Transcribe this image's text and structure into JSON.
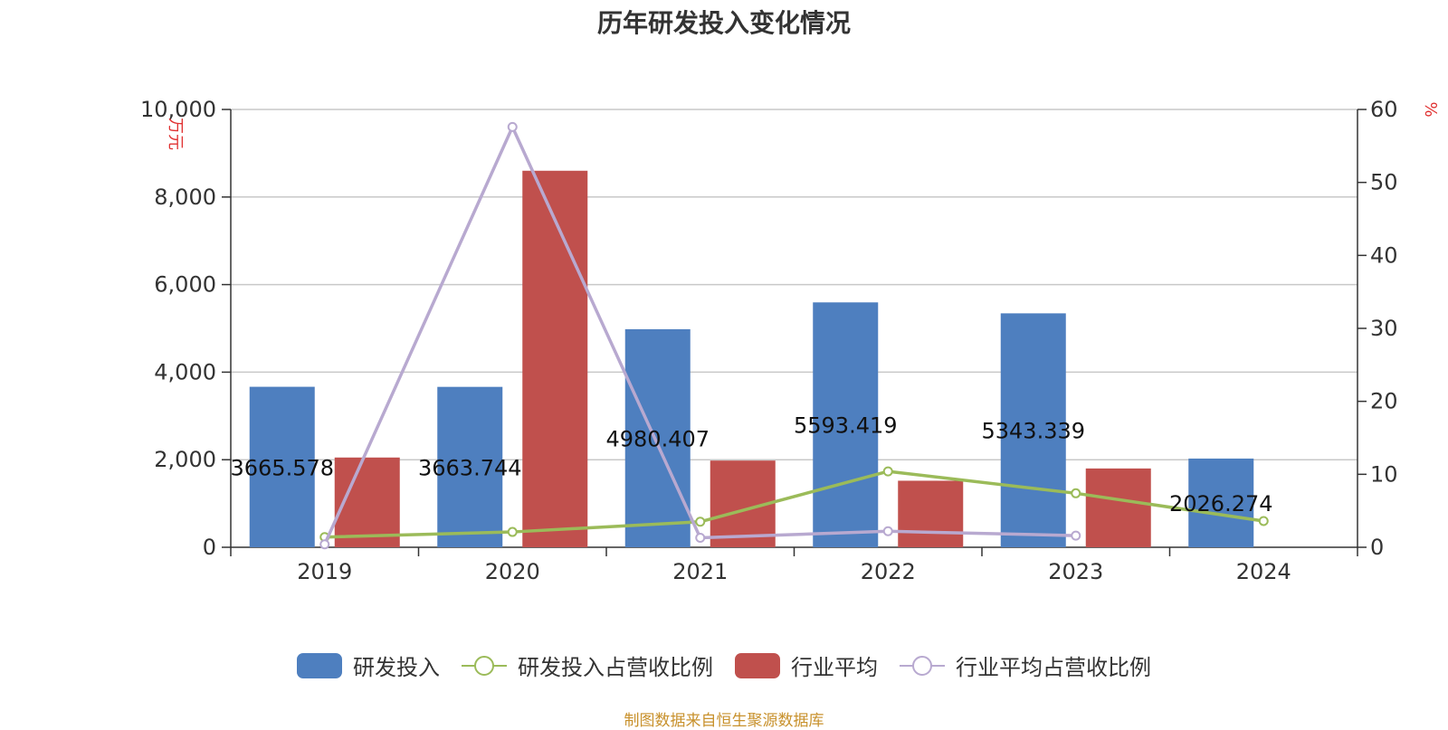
{
  "source_note": "制图数据来自恒生聚源数据库",
  "chart_data": {
    "type": "bar",
    "title": "历年研发投入变化情况",
    "categories": [
      "2019",
      "2020",
      "2021",
      "2022",
      "2023",
      "2024"
    ],
    "y_left": {
      "label": "万元",
      "range": [
        0,
        10000
      ],
      "ticks": [
        "0",
        "2,000",
        "4,000",
        "6,000",
        "8,000",
        "10,000"
      ],
      "tick_values": [
        0,
        2000,
        4000,
        6000,
        8000,
        10000
      ]
    },
    "y_right": {
      "label": "%",
      "range": [
        0,
        60
      ],
      "ticks": [
        "0",
        "10",
        "20",
        "30",
        "40",
        "50",
        "60"
      ],
      "tick_values": [
        0,
        10,
        20,
        30,
        40,
        50,
        60
      ]
    },
    "grid": true,
    "legend_position": "bottom-center",
    "series": [
      {
        "name": "研发投入",
        "type": "bar",
        "axis": "left",
        "color": "#4e7fbf",
        "values": [
          3665.578,
          3663.744,
          4980.407,
          5593.419,
          5343.339,
          2026.274
        ],
        "labels": [
          "3665.578",
          "3663.744",
          "4980.407",
          "5593.419",
          "5343.339",
          "2026.274"
        ]
      },
      {
        "name": "研发投入占营收比例",
        "type": "line",
        "axis": "right",
        "color": "#9bbb59",
        "values": [
          1.4,
          2.1,
          3.5,
          10.4,
          7.4,
          3.6
        ]
      },
      {
        "name": "行业平均",
        "type": "bar",
        "axis": "left",
        "color": "#c0504d",
        "values": [
          2050,
          8600,
          1980,
          1520,
          1800,
          null
        ]
      },
      {
        "name": "行业平均占营收比例",
        "type": "line",
        "axis": "right",
        "color": "#b8a9d0",
        "values": [
          0.4,
          57.6,
          1.3,
          2.2,
          1.6,
          null
        ]
      }
    ]
  }
}
